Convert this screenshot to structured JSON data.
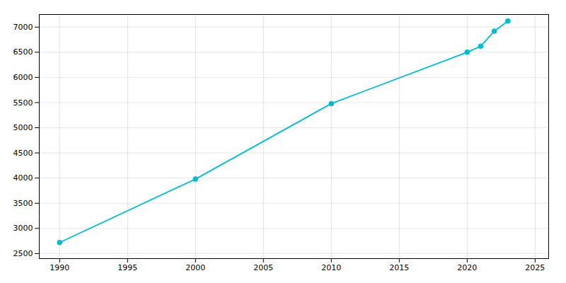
{
  "chart_data": {
    "type": "line",
    "x": [
      1990,
      2000,
      2010,
      2020,
      2021,
      2022,
      2023
    ],
    "values": [
      2720,
      3980,
      5480,
      6500,
      6620,
      6920,
      7120
    ],
    "color": "#00bcd4",
    "marker": "circle",
    "xlim": [
      1988.5,
      2026
    ],
    "ylim": [
      2400,
      7250
    ],
    "xticks": [
      1990,
      1995,
      2000,
      2005,
      2010,
      2015,
      2020,
      2025
    ],
    "yticks": [
      2500,
      3000,
      3500,
      4000,
      4500,
      5000,
      5500,
      6000,
      6500,
      7000
    ],
    "grid": true
  }
}
